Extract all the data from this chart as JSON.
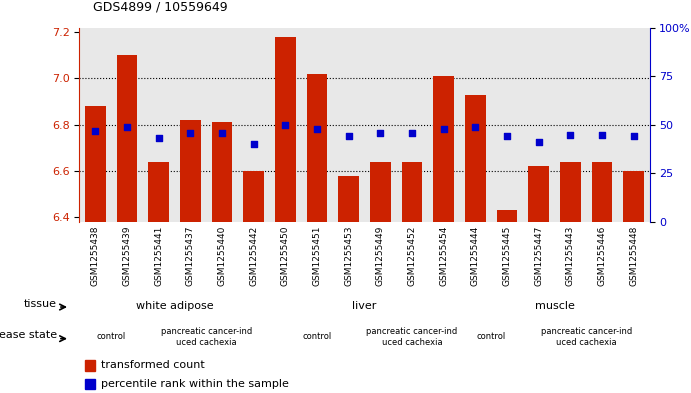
{
  "title": "GDS4899 / 10559649",
  "samples": [
    "GSM1255438",
    "GSM1255439",
    "GSM1255441",
    "GSM1255437",
    "GSM1255440",
    "GSM1255442",
    "GSM1255450",
    "GSM1255451",
    "GSM1255453",
    "GSM1255449",
    "GSM1255452",
    "GSM1255454",
    "GSM1255444",
    "GSM1255445",
    "GSM1255447",
    "GSM1255443",
    "GSM1255446",
    "GSM1255448"
  ],
  "bar_values": [
    6.88,
    7.1,
    6.64,
    6.82,
    6.81,
    6.6,
    7.18,
    7.02,
    6.58,
    6.64,
    6.64,
    7.01,
    6.93,
    6.43,
    6.62,
    6.64,
    6.64,
    6.6
  ],
  "dot_values": [
    47,
    49,
    43,
    46,
    46,
    40,
    50,
    48,
    44,
    46,
    46,
    48,
    49,
    44,
    41,
    45,
    45,
    44
  ],
  "ylim_left": [
    6.38,
    7.22
  ],
  "ylim_right": [
    0,
    100
  ],
  "yticks_left": [
    6.4,
    6.6,
    6.8,
    7.0,
    7.2
  ],
  "yticks_right": [
    0,
    25,
    50,
    75,
    100
  ],
  "bar_color": "#cc2200",
  "dot_color": "#0000cc",
  "plot_bg_color": "#e8e8e8",
  "tissue_groups": [
    {
      "label": "white adipose",
      "start": 0,
      "end": 6,
      "color": "#bbffbb"
    },
    {
      "label": "liver",
      "start": 6,
      "end": 12,
      "color": "#66ee66"
    },
    {
      "label": "muscle",
      "start": 12,
      "end": 18,
      "color": "#33cc33"
    }
  ],
  "disease_groups": [
    {
      "label": "control",
      "start": 0,
      "end": 2,
      "color": "#ffaaff"
    },
    {
      "label": "pancreatic cancer-ind\nuced cachexia",
      "start": 2,
      "end": 6,
      "color": "#dd66dd"
    },
    {
      "label": "control",
      "start": 6,
      "end": 9,
      "color": "#ffaaff"
    },
    {
      "label": "pancreatic cancer-ind\nuced cachexia",
      "start": 9,
      "end": 12,
      "color": "#dd66dd"
    },
    {
      "label": "control",
      "start": 12,
      "end": 14,
      "color": "#ffaaff"
    },
    {
      "label": "pancreatic cancer-ind\nuced cachexia",
      "start": 14,
      "end": 18,
      "color": "#dd66dd"
    }
  ],
  "tissue_label": "tissue",
  "disease_label": "disease state",
  "legend_bar": "transformed count",
  "legend_dot": "percentile rank within the sample",
  "right_axis_color": "#0000cc",
  "left_axis_color": "#cc2200",
  "tick_bg_color": "#c8c8c8"
}
